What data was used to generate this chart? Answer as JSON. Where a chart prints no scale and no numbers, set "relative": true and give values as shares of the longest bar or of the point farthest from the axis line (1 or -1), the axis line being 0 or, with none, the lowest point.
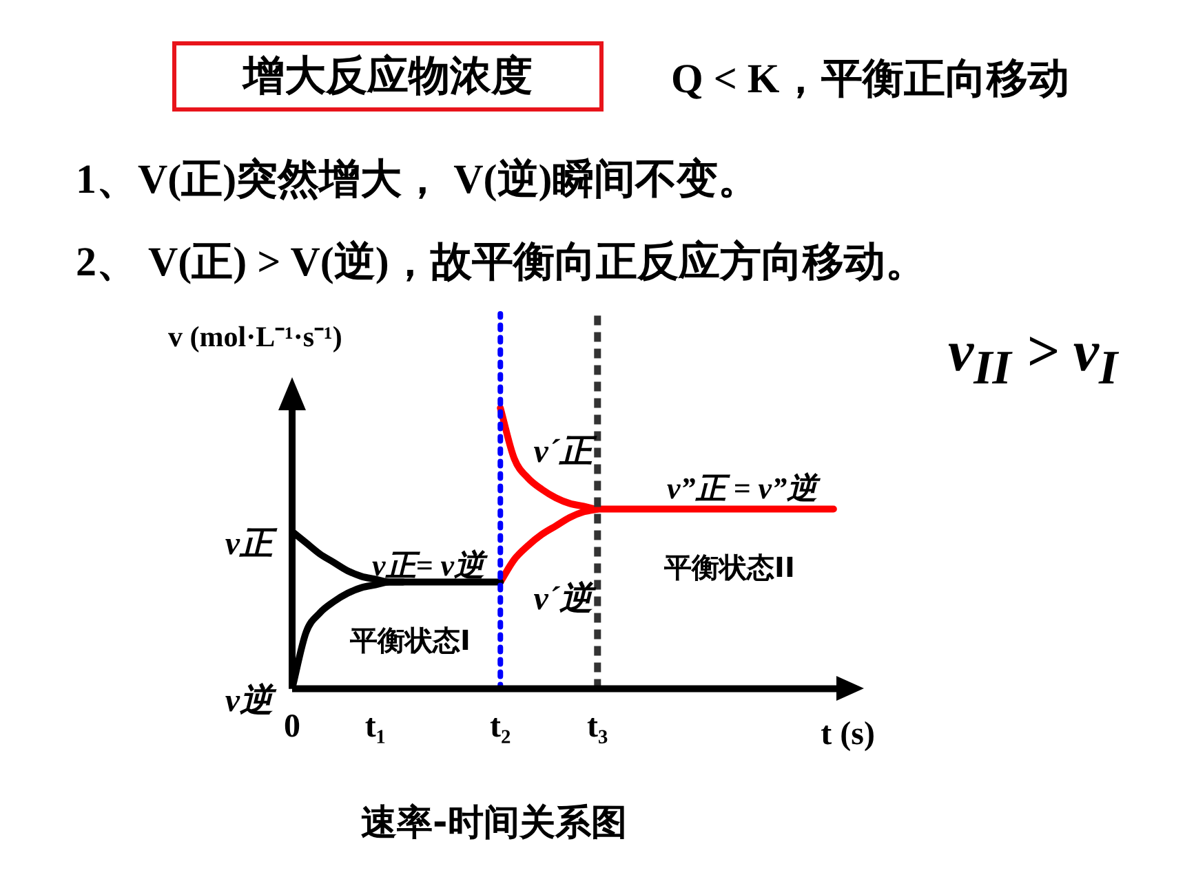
{
  "chart_data": {
    "type": "line",
    "relative": true,
    "title": "增大反应物浓度",
    "subtitle": "Q < K，平衡正向移动",
    "xlabel": "t (s)",
    "ylabel": "v (mol·L⁻¹·s⁻¹)",
    "legend": false,
    "grid": false,
    "marker": "none",
    "categories": [
      "0",
      null,
      null,
      null,
      null,
      null,
      "t₁",
      null,
      null,
      null,
      null,
      null,
      null,
      null,
      null,
      "t₂",
      null,
      null,
      null,
      null,
      null,
      null,
      "t₃",
      null,
      null,
      null,
      null,
      null,
      null,
      null,
      null,
      null,
      null,
      null,
      null,
      null,
      null,
      null,
      null,
      null,
      null
    ],
    "series": [
      {
        "name": "v正",
        "color": "#000000",
        "values": [
          0.56,
          0.52,
          0.48,
          0.45,
          0.42,
          0.4,
          0.39,
          0.38,
          0.38,
          0.38,
          0.38,
          0.38,
          0.38,
          0.38,
          0.38,
          0.38,
          null,
          null,
          null,
          null,
          null,
          null,
          null,
          null,
          null,
          null,
          null,
          null,
          null,
          null,
          null,
          null,
          null,
          null,
          null,
          null,
          null,
          null,
          null,
          null,
          null
        ]
      },
      {
        "name": "v逆",
        "color": "#000000",
        "values": [
          0,
          0.2,
          0.27,
          0.31,
          0.34,
          0.36,
          0.37,
          0.38,
          0.38,
          null,
          null,
          null,
          null,
          null,
          null,
          null,
          null,
          null,
          null,
          null,
          null,
          null,
          null,
          null,
          null,
          null,
          null,
          null,
          null,
          null,
          null,
          null,
          null,
          null,
          null,
          null,
          null,
          null,
          null,
          null,
          null
        ]
      },
      {
        "name": "v´正",
        "color": "#ff0000",
        "values": [
          null,
          null,
          null,
          null,
          null,
          null,
          null,
          null,
          null,
          null,
          null,
          null,
          null,
          null,
          null,
          1,
          0.82,
          0.75,
          0.71,
          0.68,
          0.66,
          0.65,
          0.64,
          0.64,
          0.64,
          0.64,
          0.64,
          0.64,
          0.64,
          0.64,
          0.64,
          0.64,
          0.64,
          0.64,
          0.64,
          0.64,
          0.64,
          0.64,
          0.64,
          0.64,
          null
        ]
      },
      {
        "name": "v´逆",
        "color": "#ff0000",
        "values": [
          null,
          null,
          null,
          null,
          null,
          null,
          null,
          null,
          null,
          null,
          null,
          null,
          null,
          null,
          null,
          0.38,
          0.46,
          0.51,
          0.55,
          0.58,
          0.61,
          0.63,
          0.64,
          null,
          null,
          null,
          null,
          null,
          null,
          null,
          null,
          null,
          null,
          null,
          null,
          null,
          null,
          null,
          null,
          null,
          null
        ]
      }
    ],
    "ref_lines": [
      {
        "axis": "x",
        "value": "t₂",
        "color": "#0000ff",
        "line_style": "dotted"
      },
      {
        "axis": "x",
        "value": "t₃",
        "color": "#333333",
        "line_style": "dashed"
      }
    ],
    "annotations": [
      "1、V(正)突然增大， V(逆)瞬间不变。",
      "2、 V(正) > V(逆)，故平衡向正反应方向移动。",
      "v$_{II}$ > v$_{I}$",
      "速率-时间关系图",
      "v正= v逆",
      "平衡状态I",
      "v”正 = v”逆",
      "平衡状态II"
    ]
  }
}
